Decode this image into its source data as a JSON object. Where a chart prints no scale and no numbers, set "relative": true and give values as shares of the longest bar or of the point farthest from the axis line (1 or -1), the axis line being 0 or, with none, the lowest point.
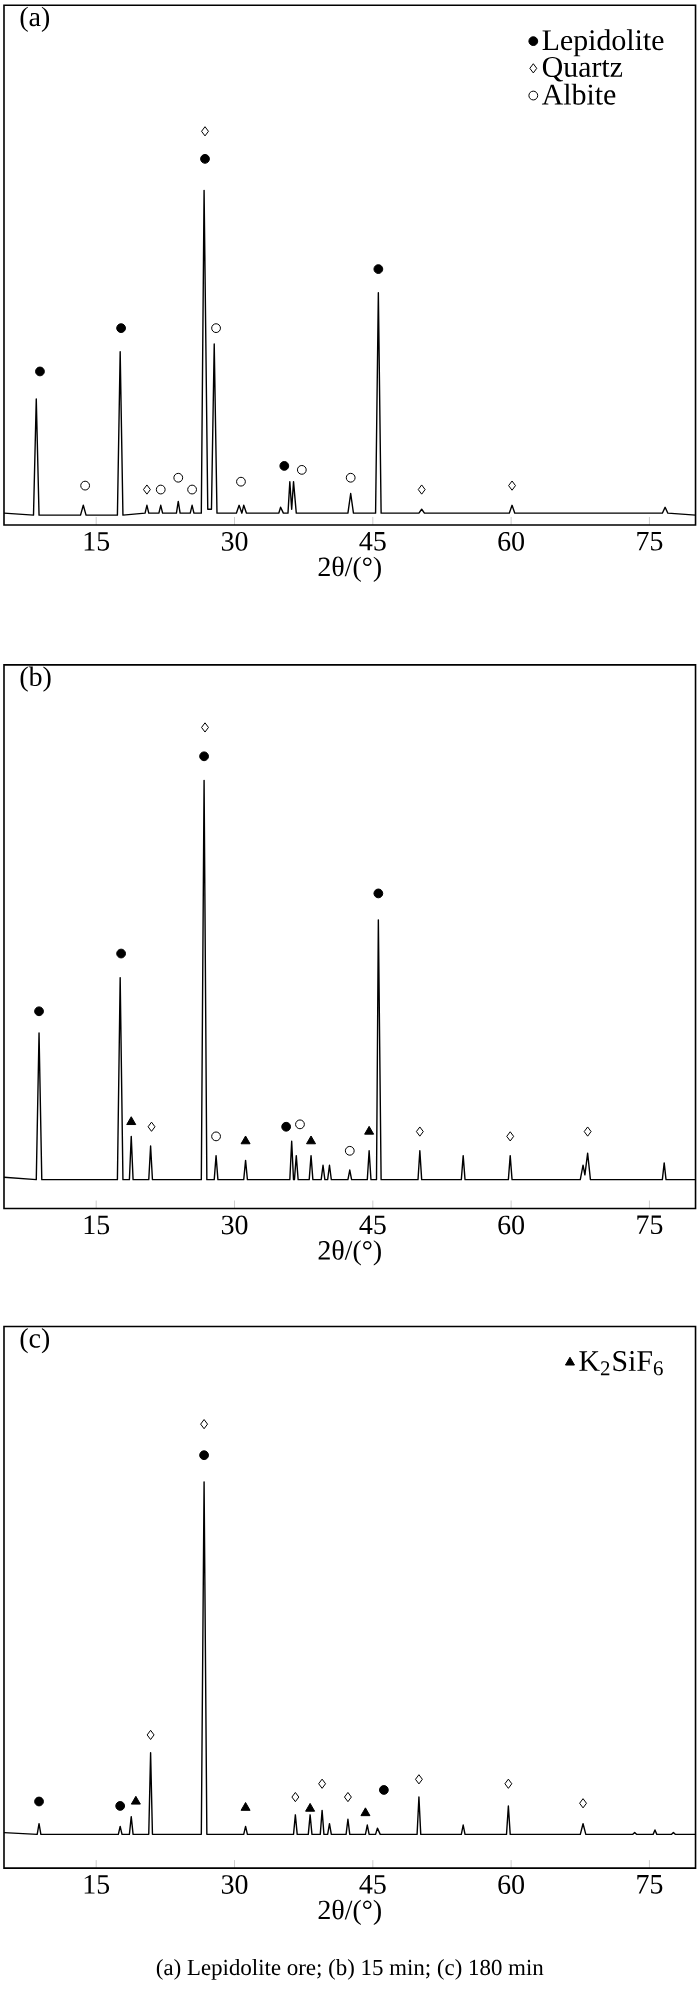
{
  "chart_data": [
    {
      "type": "line",
      "title": "(a)",
      "xlabel": "2θ/(°)",
      "relative": true,
      "xlim": [
        5,
        80
      ],
      "xticks": [
        15,
        30,
        45,
        60,
        75
      ],
      "tick_labels": "x",
      "legend": "top right",
      "series": [
        {
          "color": "#000000",
          "x": [
            5,
            8.2,
            8.5,
            8.8,
            13.3,
            13.6,
            13.9,
            17.3,
            17.6,
            17.9,
            20.3,
            20.5,
            20.7,
            21.8,
            22,
            22.2,
            23.7,
            23.9,
            24.1,
            25.2,
            25.4,
            25.6,
            26.4,
            26.7,
            27.1,
            27.5,
            27.8,
            28.1,
            30.2,
            30.5,
            30.8,
            31,
            31.3,
            34.8,
            35,
            35.3,
            35.8,
            36,
            36.2,
            36.4,
            36.7,
            42.3,
            42.6,
            42.9,
            45.3,
            45.6,
            45.9,
            50,
            50.3,
            50.6,
            59.8,
            60.1,
            60.4,
            76.4,
            76.7,
            77,
            80
          ],
          "values": [
            0.03,
            0.025,
            0.32,
            0.025,
            0.025,
            0.05,
            0.025,
            0.025,
            0.44,
            0.025,
            0.03,
            0.05,
            0.03,
            0.03,
            0.05,
            0.03,
            0.03,
            0.06,
            0.03,
            0.03,
            0.05,
            0.03,
            0.03,
            0.85,
            0.04,
            0.04,
            0.46,
            0.03,
            0.03,
            0.05,
            0.03,
            0.05,
            0.03,
            0.03,
            0.045,
            0.03,
            0.03,
            0.11,
            0.04,
            0.11,
            0.03,
            0.03,
            0.08,
            0.03,
            0.03,
            0.59,
            0.03,
            0.03,
            0.04,
            0.03,
            0.03,
            0.05,
            0.03,
            0.03,
            0.045,
            0.03,
            0.025
          ]
        },
        {
          "name": "Lepidolite",
          "type": "scatter",
          "marker": "circle",
          "color": "#000000",
          "x": [
            8.9,
            17.7,
            26.8,
            35.4,
            45.6
          ],
          "values": [
            0.39,
            0.5,
            0.93,
            0.15,
            0.65
          ]
        },
        {
          "name": "Quartz",
          "type": "scatter",
          "marker": "diamond",
          "color": "#ffffff",
          "x": [
            20.5,
            26.8,
            50.3,
            60.1
          ],
          "values": [
            0.09,
            1.0,
            0.09,
            0.1
          ]
        },
        {
          "name": "Albite",
          "type": "scatter",
          "marker": "circle",
          "color": "#ffffff",
          "x": [
            13.8,
            22.0,
            23.9,
            25.4,
            28.0,
            30.7,
            37.3,
            42.6
          ],
          "values": [
            0.1,
            0.09,
            0.12,
            0.09,
            0.5,
            0.11,
            0.14,
            0.12
          ]
        }
      ]
    },
    {
      "type": "line",
      "title": "(b)",
      "xlabel": "2θ/(°)",
      "relative": true,
      "xlim": [
        5,
        80
      ],
      "xticks": [
        15,
        30,
        45,
        60,
        75
      ],
      "tick_labels": "x",
      "series": [
        {
          "color": "#000000",
          "x": [
            5,
            8.5,
            8.8,
            9.1,
            17.3,
            17.6,
            17.9,
            18.6,
            18.8,
            19.0,
            20.7,
            20.9,
            21.1,
            26.4,
            26.7,
            27.0,
            27.8,
            28.0,
            28.2,
            31.0,
            31.2,
            31.4,
            36.0,
            36.2,
            36.4,
            36.5,
            36.7,
            36.9,
            38.1,
            38.3,
            38.5,
            39.4,
            39.6,
            39.8,
            40.1,
            40.3,
            40.5,
            42.3,
            42.5,
            42.7,
            44.4,
            44.6,
            44.8,
            45.4,
            45.6,
            45.9,
            49.9,
            50.1,
            50.3,
            54.6,
            54.8,
            55.0,
            59.7,
            59.9,
            60.1,
            67.5,
            67.8,
            68.0,
            68.3,
            68.6,
            76.4,
            76.6,
            76.8,
            80
          ],
          "values": [
            0.065,
            0.06,
            0.365,
            0.06,
            0.06,
            0.48,
            0.06,
            0.06,
            0.15,
            0.06,
            0.06,
            0.13,
            0.06,
            0.06,
            0.89,
            0.06,
            0.06,
            0.11,
            0.06,
            0.06,
            0.1,
            0.06,
            0.06,
            0.14,
            0.06,
            0.06,
            0.11,
            0.06,
            0.06,
            0.11,
            0.06,
            0.06,
            0.09,
            0.06,
            0.06,
            0.09,
            0.06,
            0.06,
            0.08,
            0.06,
            0.06,
            0.12,
            0.06,
            0.06,
            0.6,
            0.06,
            0.06,
            0.12,
            0.06,
            0.06,
            0.11,
            0.06,
            0.06,
            0.11,
            0.06,
            0.06,
            0.09,
            0.07,
            0.115,
            0.06,
            0.06,
            0.095,
            0.06,
            0.06
          ]
        },
        {
          "type": "scatter",
          "marker": "circle",
          "color": "#000000",
          "x": [
            8.8,
            17.7,
            26.7,
            35.6,
            45.6
          ],
          "values": [
            0.41,
            0.53,
            0.94,
            0.17,
            0.655
          ]
        },
        {
          "type": "scatter",
          "marker": "diamond",
          "color": "#ffffff",
          "x": [
            21.0,
            26.8,
            50.1,
            59.9,
            68.3
          ],
          "values": [
            0.17,
            1.0,
            0.16,
            0.15,
            0.16
          ]
        },
        {
          "type": "scatter",
          "marker": "circle",
          "color": "#ffffff",
          "x": [
            28.0,
            37.1,
            42.5
          ],
          "values": [
            0.15,
            0.175,
            0.12
          ]
        },
        {
          "type": "scatter",
          "marker": "triangle",
          "color": "#000000",
          "x": [
            18.8,
            31.2,
            38.3,
            44.6
          ],
          "values": [
            0.18,
            0.14,
            0.14,
            0.16
          ]
        }
      ]
    },
    {
      "type": "line",
      "title": "(c)",
      "xlabel": "2θ/(°)",
      "relative": true,
      "xlim": [
        5,
        80
      ],
      "xticks": [
        15,
        30,
        45,
        60,
        75
      ],
      "tick_labels": "x",
      "legend": "top right",
      "annotations": [
        "(a) Lepidolite ore; (b) 15 min; (c) 180 min"
      ],
      "series": [
        {
          "color": "#000000",
          "x": [
            5,
            8.6,
            8.8,
            9.0,
            17.4,
            17.6,
            17.8,
            18.6,
            18.8,
            19.0,
            20.7,
            20.9,
            21.1,
            26.4,
            26.7,
            27.0,
            31.0,
            31.2,
            31.4,
            36.4,
            36.6,
            36.8,
            38.0,
            38.2,
            38.4,
            39.3,
            39.5,
            39.7,
            40.1,
            40.3,
            40.5,
            42.1,
            42.3,
            42.5,
            44.2,
            44.4,
            44.6,
            45.3,
            45.5,
            45.8,
            49.8,
            50.0,
            50.2,
            54.6,
            54.8,
            55.0,
            59.5,
            59.7,
            59.9,
            67.5,
            67.8,
            68.1,
            73.2,
            73.4,
            73.6,
            75.4,
            75.6,
            75.8,
            77.4,
            77.6,
            77.8,
            80
          ],
          "values": [
            0.08,
            0.076,
            0.1,
            0.076,
            0.076,
            0.094,
            0.076,
            0.076,
            0.116,
            0.076,
            0.076,
            0.26,
            0.076,
            0.076,
            0.87,
            0.076,
            0.076,
            0.094,
            0.076,
            0.076,
            0.12,
            0.076,
            0.076,
            0.12,
            0.076,
            0.076,
            0.13,
            0.076,
            0.076,
            0.1,
            0.076,
            0.076,
            0.11,
            0.076,
            0.076,
            0.097,
            0.076,
            0.076,
            0.09,
            0.076,
            0.076,
            0.16,
            0.076,
            0.076,
            0.097,
            0.076,
            0.076,
            0.14,
            0.076,
            0.076,
            0.1,
            0.076,
            0.076,
            0.08,
            0.076,
            0.076,
            0.086,
            0.076,
            0.076,
            0.08,
            0.076,
            0.076
          ]
        },
        {
          "type": "scatter",
          "marker": "circle",
          "color": "#000000",
          "x": [
            8.8,
            17.6,
            26.7,
            46.2
          ],
          "values": [
            0.15,
            0.14,
            0.93,
            0.176
          ]
        },
        {
          "type": "scatter",
          "marker": "diamond",
          "color": "#ffffff",
          "x": [
            20.9,
            26.7,
            36.6,
            39.5,
            42.3,
            50.0,
            59.7,
            67.8
          ],
          "values": [
            0.3,
            1.0,
            0.16,
            0.19,
            0.16,
            0.2,
            0.19,
            0.146
          ]
        },
        {
          "name": "K$_{2}$SiF$_{6}$",
          "type": "scatter",
          "marker": "triangle",
          "color": "#000000",
          "x": [
            19.3,
            31.2,
            38.2,
            44.2
          ],
          "values": [
            0.15,
            0.136,
            0.134,
            0.124
          ]
        }
      ]
    }
  ]
}
